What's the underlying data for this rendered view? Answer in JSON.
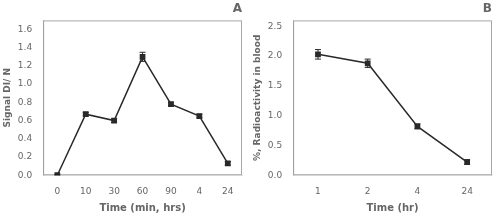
{
  "chart_data": [
    {
      "type": "line",
      "title": "A",
      "x_label": "Time (min, hrs)",
      "y_label": "Signal DI/ N",
      "categories": [
        "0",
        "10",
        "30",
        "60",
        "90",
        "4",
        "24"
      ],
      "values": [
        0.0,
        0.67,
        0.6,
        1.3,
        0.78,
        0.65,
        0.13
      ],
      "yerr": [
        0.0,
        0.02,
        0.02,
        0.05,
        0.02,
        0.02,
        0.02
      ],
      "color": "#2a2a2a",
      "marker": "square",
      "ylim": [
        0,
        1.7
      ],
      "yticks": [
        {
          "value": 0,
          "label": "0.0"
        },
        0.2,
        0.4,
        0.6,
        0.8,
        {
          "value": 1.0,
          "label": "1.0"
        },
        1.2,
        1.4,
        1.6
      ],
      "grid": false
    },
    {
      "type": "line",
      "title": "B",
      "x_label": "Time (hr)",
      "y_label": "%, Radioactivity in blood",
      "categories": [
        "1",
        "2",
        "4",
        "24"
      ],
      "values": [
        2.03,
        1.88,
        0.82,
        0.22
      ],
      "yerr": [
        0.08,
        0.07,
        0.04,
        0.04
      ],
      "color": "#2a2a2a",
      "marker": "square",
      "ylim": [
        0,
        2.6
      ],
      "yticks": [
        {
          "value": 0,
          "label": "0.0"
        },
        0.5,
        {
          "value": 1.0,
          "label": "1.0"
        },
        1.5,
        {
          "value": 2.0,
          "label": "2.0"
        },
        2.5
      ],
      "grid": false
    }
  ]
}
